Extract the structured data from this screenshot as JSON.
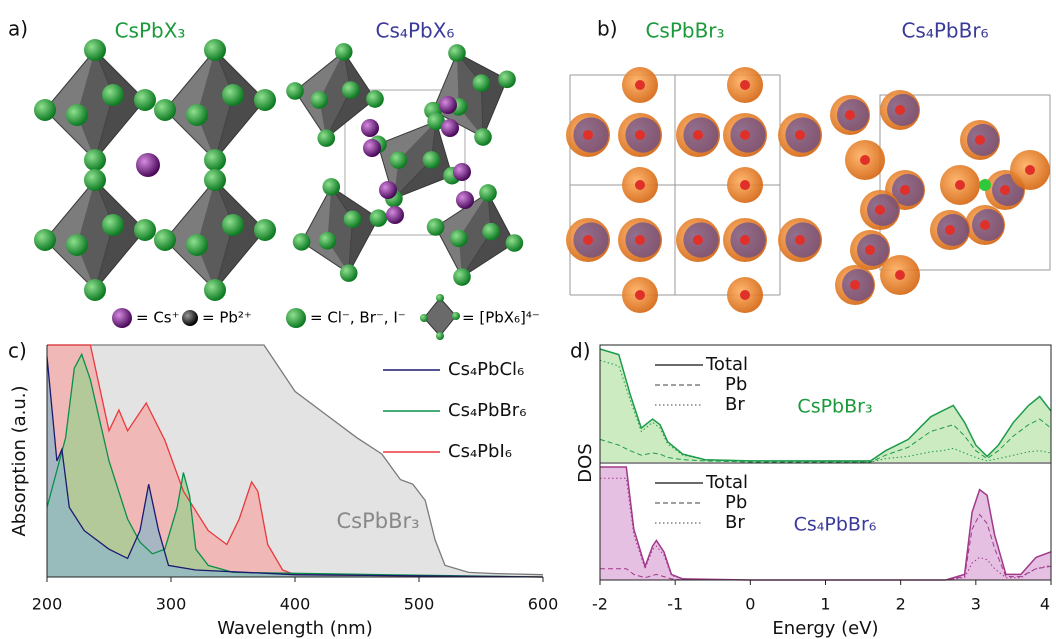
{
  "figure": {
    "panel_a": {
      "label": "a)",
      "titles": [
        "CsPbX₃",
        "Cs₄PbX₆"
      ],
      "key": [
        "= Cs⁺",
        "= Pb²⁺",
        "= Cl⁻, Br⁻, I⁻",
        "= [PbX₆]⁴⁻"
      ]
    },
    "panel_b": {
      "label": "b)",
      "titles": [
        "CsPbBr₃",
        "Cs₄PbBr₆"
      ]
    }
  },
  "chart_data": [
    {
      "type": "line",
      "panel_label": "c)",
      "xlabel": "Wavelength (nm)",
      "ylabel": "Absorption (a.u.)",
      "xlim": [
        200,
        600
      ],
      "xticks": [
        200,
        300,
        400,
        500,
        600
      ],
      "ylim": [
        0,
        1
      ],
      "fill": true,
      "legend": "upper right",
      "annotation": "CsPbBr₃",
      "series": [
        {
          "color": "#7a7a7a",
          "fill": "#d9d9d9",
          "x": [
            200,
            250,
            300,
            350,
            375,
            400,
            425,
            450,
            470,
            485,
            495,
            505,
            513,
            521,
            540,
            560,
            600
          ],
          "values": [
            1,
            1,
            1,
            1,
            1,
            0.8,
            0.7,
            0.6,
            0.53,
            0.42,
            0.4,
            0.33,
            0.16,
            0.05,
            0.02,
            0.015,
            0.01
          ]
        },
        {
          "name": "Cs₄PbI₆",
          "color": "#e8393b",
          "fill": "#f6a9a9",
          "x": [
            200,
            235,
            250,
            258,
            265,
            280,
            295,
            310,
            330,
            345,
            355,
            365,
            370,
            378,
            390,
            400,
            600
          ],
          "values": [
            1,
            1,
            0.63,
            0.72,
            0.63,
            0.75,
            0.59,
            0.37,
            0.2,
            0.14,
            0.25,
            0.41,
            0.37,
            0.14,
            0.03,
            0.01,
            0
          ]
        },
        {
          "name": "Cs₄PbBr₆",
          "color": "#0a8f4a",
          "fill": "#9fcf8f",
          "x": [
            200,
            215,
            222,
            228,
            235,
            250,
            265,
            275,
            285,
            295,
            305,
            310,
            315,
            320,
            330,
            350,
            600
          ],
          "values": [
            0.3,
            0.6,
            0.9,
            0.96,
            0.85,
            0.5,
            0.25,
            0.15,
            0.1,
            0.12,
            0.3,
            0.45,
            0.35,
            0.12,
            0.05,
            0.02,
            0
          ]
        },
        {
          "name": "Cs₄PbCl₆",
          "color": "#1a1a6e",
          "fill": "#8fb5c8",
          "x": [
            200,
            208,
            212,
            218,
            230,
            250,
            265,
            275,
            282,
            290,
            298,
            320,
            400,
            600
          ],
          "values": [
            0.95,
            0.5,
            0.55,
            0.3,
            0.2,
            0.12,
            0.08,
            0.2,
            0.4,
            0.2,
            0.05,
            0.03,
            0.01,
            0
          ]
        }
      ]
    },
    {
      "type": "dos",
      "panel_label": "d)",
      "xlabel": "Energy (eV)",
      "ylabel": "DOS",
      "xlim": [
        -2,
        4
      ],
      "xticks": [
        -2,
        -1,
        0,
        1,
        2,
        3,
        4
      ],
      "ylim": [
        0,
        1
      ],
      "panels": [
        {
          "annotation": "CsPbBr₃",
          "color": "#1e9b4c",
          "fill": "#bfe6b0",
          "x": [
            -2,
            -1.75,
            -1.6,
            -1.45,
            -1.3,
            -1.2,
            -1.1,
            -0.9,
            -0.6,
            0,
            1.6,
            1.8,
            2.1,
            2.4,
            2.55,
            2.7,
            2.85,
            3,
            3.15,
            3.3,
            3.5,
            3.7,
            3.85,
            4
          ],
          "series": [
            {
              "name": "Total",
              "dash": "solid",
              "values": [
                1,
                0.95,
                0.6,
                0.3,
                0.38,
                0.33,
                0.18,
                0.07,
                0.02,
                0.01,
                0.01,
                0.1,
                0.2,
                0.4,
                0.45,
                0.5,
                0.35,
                0.15,
                0.05,
                0.15,
                0.35,
                0.5,
                0.58,
                0.45
              ]
            },
            {
              "name": "Pb",
              "dash": "dashed",
              "values": [
                0.2,
                0.15,
                0.1,
                0.06,
                0.08,
                0.07,
                0.04,
                0.02,
                0.01,
                0,
                0,
                0.06,
                0.13,
                0.27,
                0.3,
                0.33,
                0.23,
                0.1,
                0.03,
                0.1,
                0.23,
                0.33,
                0.38,
                0.3
              ]
            },
            {
              "name": "Br",
              "dash": "dotted",
              "values": [
                0.9,
                0.85,
                0.55,
                0.27,
                0.35,
                0.3,
                0.16,
                0.06,
                0.02,
                0.01,
                0,
                0.03,
                0.05,
                0.09,
                0.1,
                0.12,
                0.08,
                0.04,
                0.01,
                0.03,
                0.06,
                0.09,
                0.1,
                0.08
              ]
            }
          ]
        },
        {
          "annotation": "Cs₄PbBr₆",
          "color": "#a0398a",
          "fill": "#e0b0dc",
          "x": [
            -2,
            -1.8,
            -1.65,
            -1.55,
            -1.4,
            -1.3,
            -1.25,
            -1.15,
            -1.05,
            -0.9,
            0,
            2.6,
            2.85,
            2.95,
            3.05,
            3.15,
            3.25,
            3.4,
            3.6,
            3.8,
            4
          ],
          "series": [
            {
              "name": "Total",
              "dash": "solid",
              "values": [
                1,
                1,
                1,
                0.45,
                0.12,
                0.3,
                0.35,
                0.25,
                0.05,
                0.01,
                0,
                0,
                0.05,
                0.6,
                0.8,
                0.75,
                0.4,
                0.05,
                0.05,
                0.2,
                0.25
              ]
            },
            {
              "name": "Pb",
              "dash": "dashed",
              "values": [
                0.1,
                0.1,
                0.1,
                0.05,
                0.02,
                0.04,
                0.05,
                0.03,
                0.01,
                0,
                0,
                0,
                0.03,
                0.45,
                0.58,
                0.5,
                0.28,
                0.03,
                0.03,
                0.1,
                0.12
              ]
            },
            {
              "name": "Br",
              "dash": "dotted",
              "values": [
                0.9,
                0.9,
                0.9,
                0.4,
                0.1,
                0.27,
                0.3,
                0.22,
                0.04,
                0.01,
                0,
                0,
                0.02,
                0.15,
                0.2,
                0.18,
                0.1,
                0.02,
                0.02,
                0.1,
                0.13
              ]
            }
          ]
        }
      ]
    }
  ]
}
